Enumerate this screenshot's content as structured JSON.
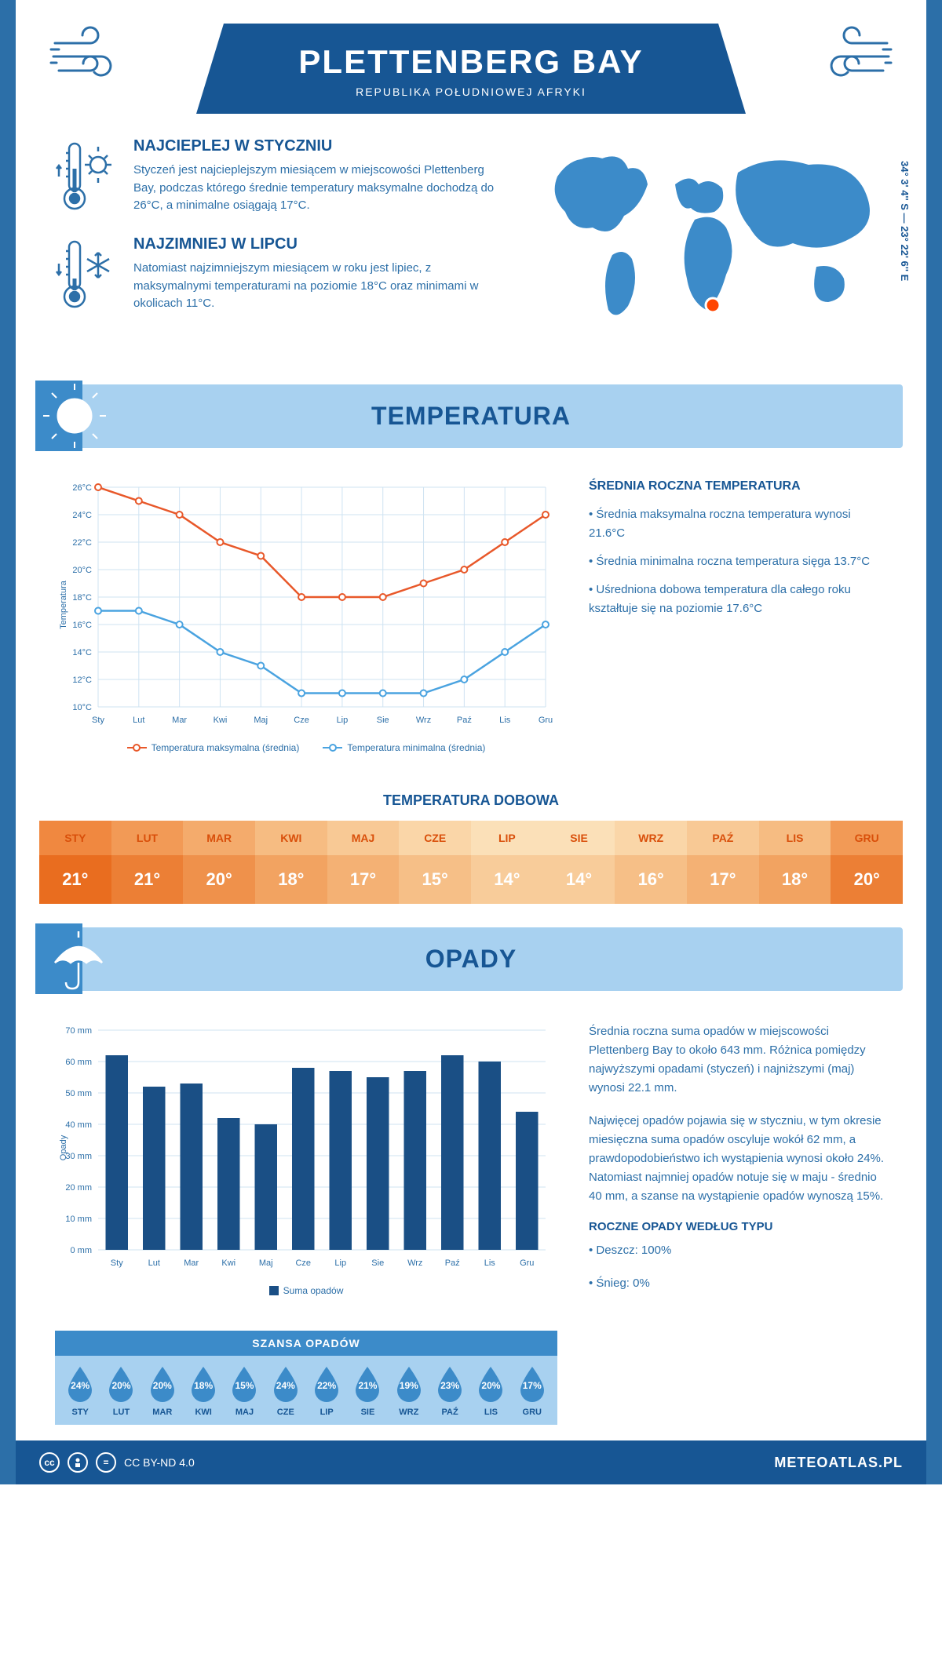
{
  "header": {
    "title": "PLETTENBERG BAY",
    "subtitle": "REPUBLIKA POŁUDNIOWEJ AFRYKI",
    "coords": "34° 3' 4'' S — 23° 22' 6'' E"
  },
  "info": {
    "warmest": {
      "title": "NAJCIEPLEJ W STYCZNIU",
      "text": "Styczeń jest najcieplejszym miesiącem w miejscowości Plettenberg Bay, podczas którego średnie temperatury maksymalne dochodzą do 26°C, a minimalne osiągają 17°C."
    },
    "coldest": {
      "title": "NAJZIMNIEJ W LIPCU",
      "text": "Natomiast najzimniejszym miesiącem w roku jest lipiec, z maksymalnymi temperaturami na poziomie 18°C oraz minimami w okolicach 11°C."
    }
  },
  "temperature": {
    "section_title": "TEMPERATURA",
    "months": [
      "Sty",
      "Lut",
      "Mar",
      "Kwi",
      "Maj",
      "Cze",
      "Lip",
      "Sie",
      "Wrz",
      "Paź",
      "Lis",
      "Gru"
    ],
    "max_series": [
      26,
      25,
      24,
      22,
      21,
      18,
      18,
      18,
      19,
      20,
      22,
      24
    ],
    "min_series": [
      17,
      17,
      16,
      14,
      13,
      11,
      11,
      11,
      11,
      12,
      14,
      16
    ],
    "ylim": [
      10,
      26
    ],
    "ytick_step": 2,
    "y_axis_title": "Temperatura",
    "line_colors": {
      "max": "#e8582a",
      "min": "#4aa3e0"
    },
    "grid_color": "#cfe3f2",
    "legend": {
      "max": "Temperatura maksymalna (średnia)",
      "min": "Temperatura minimalna (średnia)"
    },
    "side": {
      "title": "ŚREDNIA ROCZNA TEMPERATURA",
      "bullets": [
        "• Średnia maksymalna roczna temperatura wynosi 21.6°C",
        "• Średnia minimalna roczna temperatura sięga 13.7°C",
        "• Uśredniona dobowa temperatura dla całego roku kształtuje się na poziomie 17.6°C"
      ]
    }
  },
  "daily_temp": {
    "title": "TEMPERATURA DOBOWA",
    "months": [
      "STY",
      "LUT",
      "MAR",
      "KWI",
      "MAJ",
      "CZE",
      "LIP",
      "SIE",
      "WRZ",
      "PAŹ",
      "LIS",
      "GRU"
    ],
    "values": [
      "21°",
      "21°",
      "20°",
      "18°",
      "17°",
      "15°",
      "14°",
      "14°",
      "16°",
      "17°",
      "18°",
      "20°"
    ],
    "head_colors": [
      "#f08840",
      "#f29a56",
      "#f4ab6c",
      "#f6bc82",
      "#f8c995",
      "#fad6a8",
      "#fbe0b8",
      "#fbe0b8",
      "#fad6a8",
      "#f8c995",
      "#f6bc82",
      "#f29a56"
    ],
    "val_colors": [
      "#e96d1f",
      "#ec7f35",
      "#ef914b",
      "#f2a361",
      "#f4b174",
      "#f6bf87",
      "#f8cc9a",
      "#f8cc9a",
      "#f6bf87",
      "#f4b174",
      "#f2a361",
      "#ec7f35"
    ],
    "head_text_color": "#d94f0a"
  },
  "precip": {
    "section_title": "OPADY",
    "months": [
      "Sty",
      "Lut",
      "Mar",
      "Kwi",
      "Maj",
      "Cze",
      "Lip",
      "Sie",
      "Wrz",
      "Paź",
      "Lis",
      "Gru"
    ],
    "values": [
      62,
      52,
      53,
      42,
      40,
      58,
      57,
      55,
      57,
      62,
      60,
      44
    ],
    "ylim": [
      0,
      70
    ],
    "ytick_step": 10,
    "y_axis_title": "Opady",
    "bar_color": "#1a4f85",
    "grid_color": "#cfe3f2",
    "legend_label": "Suma opadów",
    "side": {
      "p1": "Średnia roczna suma opadów w miejscowości Plettenberg Bay to około 643 mm. Różnica pomiędzy najwyższymi opadami (styczeń) i najniższymi (maj) wynosi 22.1 mm.",
      "p2": "Najwięcej opadów pojawia się w styczniu, w tym okresie miesięczna suma opadów oscyluje wokół 62 mm, a prawdopodobieństwo ich wystąpienia wynosi około 24%. Natomiast najmniej opadów notuje się w maju - średnio 40 mm, a szanse na wystąpienie opadów wynoszą 15%.",
      "type_title": "ROCZNE OPADY WEDŁUG TYPU",
      "bullets": [
        "• Deszcz: 100%",
        "• Śnieg: 0%"
      ]
    }
  },
  "chance": {
    "title": "SZANSA OPADÓW",
    "months": [
      "STY",
      "LUT",
      "MAR",
      "KWI",
      "MAJ",
      "CZE",
      "LIP",
      "SIE",
      "WRZ",
      "PAŹ",
      "LIS",
      "GRU"
    ],
    "values": [
      "24%",
      "20%",
      "20%",
      "18%",
      "15%",
      "24%",
      "22%",
      "21%",
      "19%",
      "23%",
      "20%",
      "17%"
    ],
    "drop_color": "#3c8bc9"
  },
  "footer": {
    "license": "CC BY-ND 4.0",
    "site": "METEOATLAS.PL"
  }
}
